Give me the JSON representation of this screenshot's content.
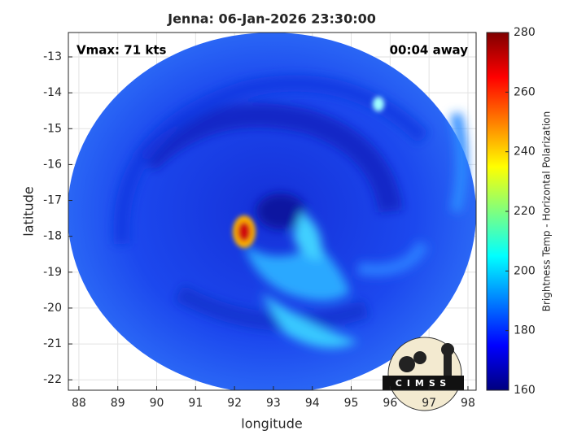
{
  "chart_data": {
    "type": "image",
    "title": "Jenna: 06-Jan-2026 23:30:00",
    "annotations": [
      "Vmax: 71 kts",
      "00:04 away"
    ],
    "xlabel": "longitude",
    "ylabel": "latitude",
    "xlim": [
      87.73,
      98.21
    ],
    "xticks": [
      88,
      89,
      90,
      91,
      92,
      93,
      94,
      95,
      96,
      97,
      98
    ],
    "ylim": [
      -22.29,
      -12.32
    ],
    "yticks": [
      -22,
      -21,
      -20,
      -19,
      -18,
      -17,
      -16,
      -15,
      -14,
      -13
    ],
    "grid": true,
    "colormap": "jet",
    "clim": [
      160,
      280
    ],
    "cticks": [
      160,
      180,
      200,
      220,
      240,
      260,
      280
    ],
    "colorbar_label": "Brightness Temp - Horizontal Polarization",
    "logo_text": "CIMSS"
  }
}
